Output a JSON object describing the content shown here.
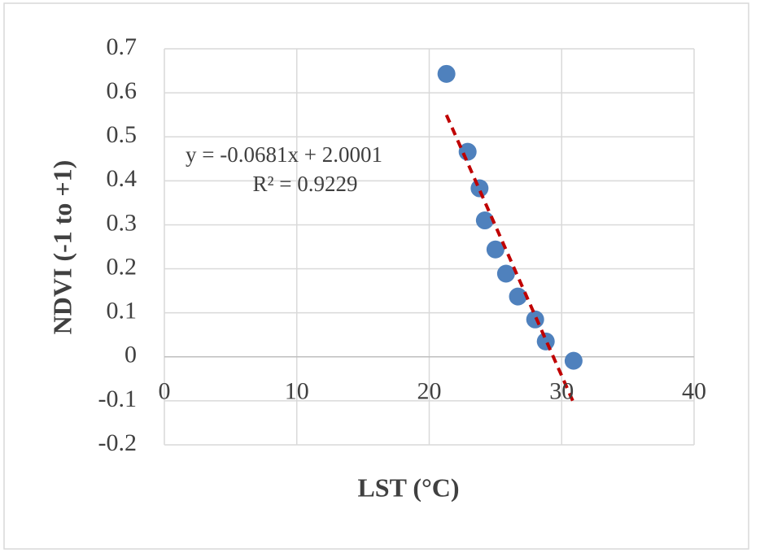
{
  "chart_data": {
    "type": "scatter",
    "x_label": "LST (°C)",
    "y_label": "NDVI (-1 to +1)",
    "x": [
      21.3,
      22.9,
      23.8,
      24.2,
      25.0,
      25.8,
      26.7,
      28.0,
      28.8,
      30.9
    ],
    "series": [
      {
        "name": "NDVI",
        "color": "#4f81bd",
        "values": [
          0.643,
          0.466,
          0.383,
          0.31,
          0.244,
          0.189,
          0.137,
          0.085,
          0.035,
          -0.009
        ]
      }
    ],
    "xlim": [
      0,
      40
    ],
    "xticks": [
      0,
      10,
      20,
      30,
      40
    ],
    "ylim": [
      -0.2,
      0.7
    ],
    "yticks": [
      -0.2,
      -0.1,
      0,
      0.1,
      0.2,
      0.3,
      0.4,
      0.5,
      0.6,
      0.7
    ],
    "grid": true,
    "trendline": {
      "equation": "y = -0.0681x + 2.0001",
      "r_squared": "R² = 0.9229",
      "slope": -0.0681,
      "intercept": 2.0001,
      "color": "#c00000"
    }
  }
}
